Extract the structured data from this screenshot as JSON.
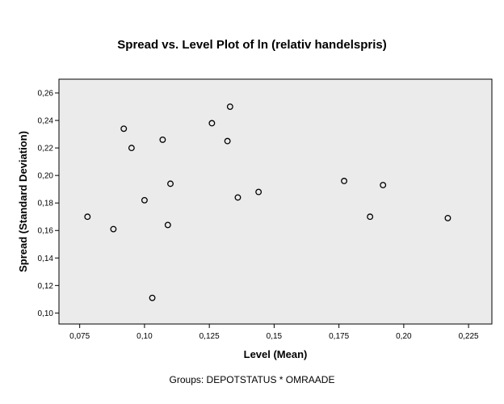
{
  "chart_data": {
    "type": "scatter",
    "title": "Spread vs. Level Plot of ln (relativ handelspris)",
    "xlabel": "Level (Mean)",
    "ylabel": "Spread (Standard Deviation)",
    "footnote": "Groups: DEPOTSTATUS * OMRAADE",
    "xlim": [
      0.067,
      0.234
    ],
    "ylim": [
      0.092,
      0.27
    ],
    "xticks": [
      0.075,
      0.1,
      0.125,
      0.15,
      0.175,
      0.2,
      0.225
    ],
    "xtick_labels": [
      "0,075",
      "0,10",
      "0,125",
      "0,15",
      "0,175",
      "0,20",
      "0,225"
    ],
    "yticks": [
      0.1,
      0.12,
      0.14,
      0.16,
      0.18,
      0.2,
      0.22,
      0.24,
      0.26
    ],
    "ytick_labels": [
      "0,10",
      "0,12",
      "0,14",
      "0,16",
      "0,18",
      "0,20",
      "0,22",
      "0,24",
      "0,26"
    ],
    "grid": false,
    "background": "#ebebeb",
    "marker": "open-circle",
    "points": [
      {
        "x": 0.078,
        "y": 0.17
      },
      {
        "x": 0.088,
        "y": 0.161
      },
      {
        "x": 0.092,
        "y": 0.234
      },
      {
        "x": 0.095,
        "y": 0.22
      },
      {
        "x": 0.1,
        "y": 0.182
      },
      {
        "x": 0.103,
        "y": 0.111
      },
      {
        "x": 0.107,
        "y": 0.226
      },
      {
        "x": 0.109,
        "y": 0.164
      },
      {
        "x": 0.11,
        "y": 0.194
      },
      {
        "x": 0.126,
        "y": 0.238
      },
      {
        "x": 0.132,
        "y": 0.225
      },
      {
        "x": 0.133,
        "y": 0.25
      },
      {
        "x": 0.136,
        "y": 0.184
      },
      {
        "x": 0.144,
        "y": 0.188
      },
      {
        "x": 0.177,
        "y": 0.196
      },
      {
        "x": 0.187,
        "y": 0.17
      },
      {
        "x": 0.192,
        "y": 0.193
      },
      {
        "x": 0.217,
        "y": 0.169
      }
    ]
  }
}
